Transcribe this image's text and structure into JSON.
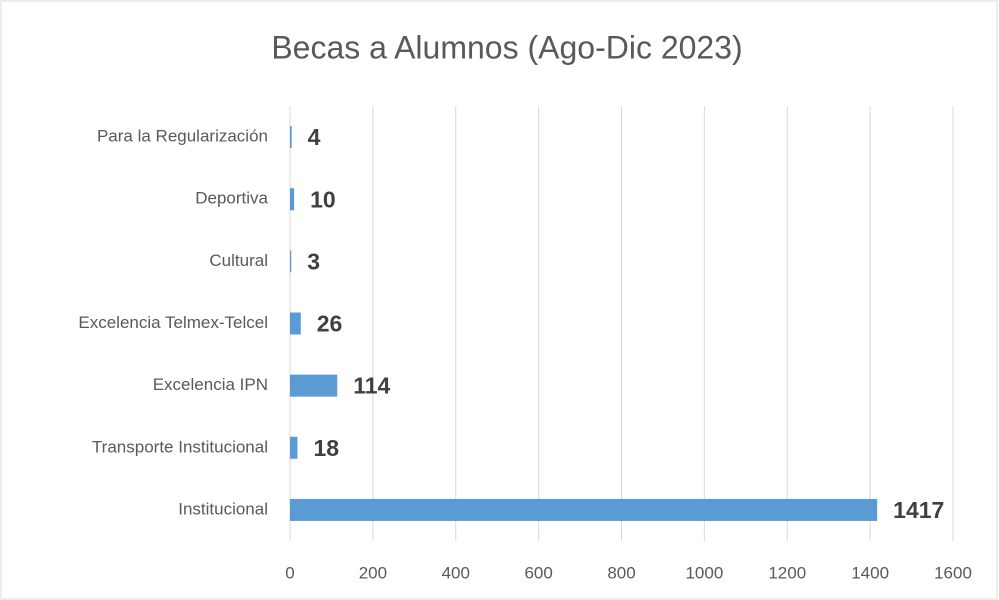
{
  "chart_data": {
    "type": "bar",
    "orientation": "horizontal",
    "title": "Becas a Alumnos (Ago-Dic 2023)",
    "categories": [
      "Para la Regularización",
      "Deportiva",
      "Cultural",
      "Excelencia Telmex-Telcel",
      "Excelencia IPN",
      "Transporte Institucional",
      "Institucional"
    ],
    "values": [
      4,
      10,
      3,
      26,
      114,
      18,
      1417
    ],
    "color": "#5b9bd5",
    "xlim": [
      0,
      1600
    ],
    "xticks": [
      0,
      200,
      400,
      600,
      800,
      1000,
      1200,
      1400,
      1600
    ],
    "grid": true
  }
}
